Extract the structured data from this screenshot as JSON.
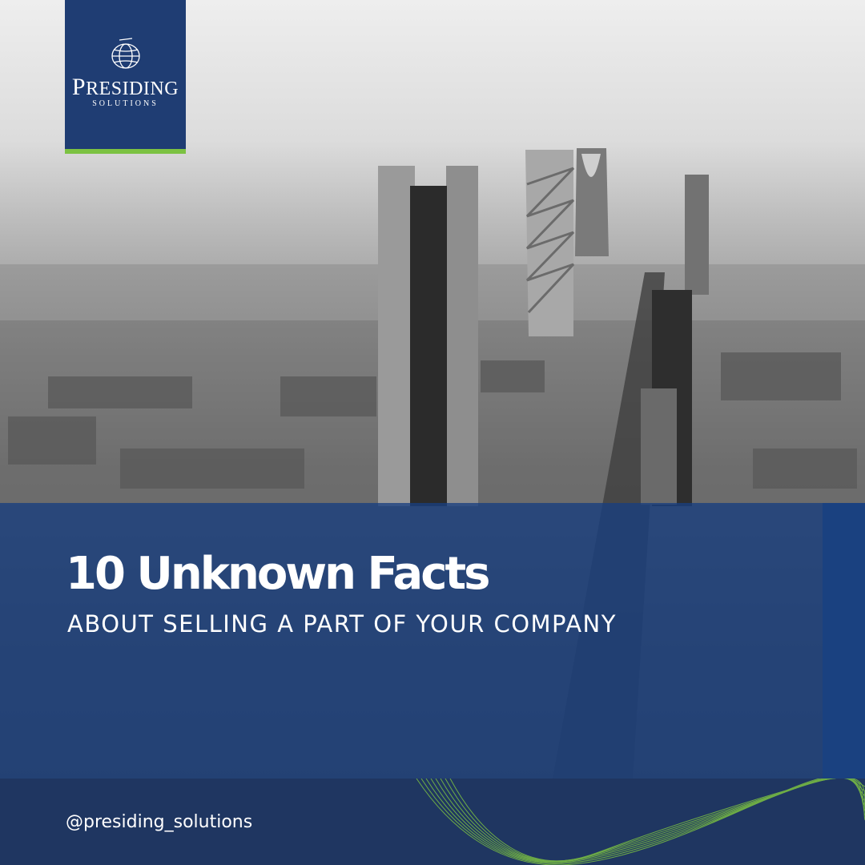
{
  "brand": {
    "name_first_letter": "P",
    "name_rest": "RESIDING",
    "tagline": "SOLUTIONS",
    "accent_color": "#7cc242",
    "primary_color": "#1f3d73"
  },
  "headline": {
    "title": "10 Unknown Facts",
    "subtitle": "ABOUT SELLING A PART OF YOUR COMPANY"
  },
  "footer": {
    "handle": "@presiding_solutions"
  },
  "icons": {
    "logo": "globe-wireframe-icon",
    "decoration": "wave-lines-icon"
  }
}
